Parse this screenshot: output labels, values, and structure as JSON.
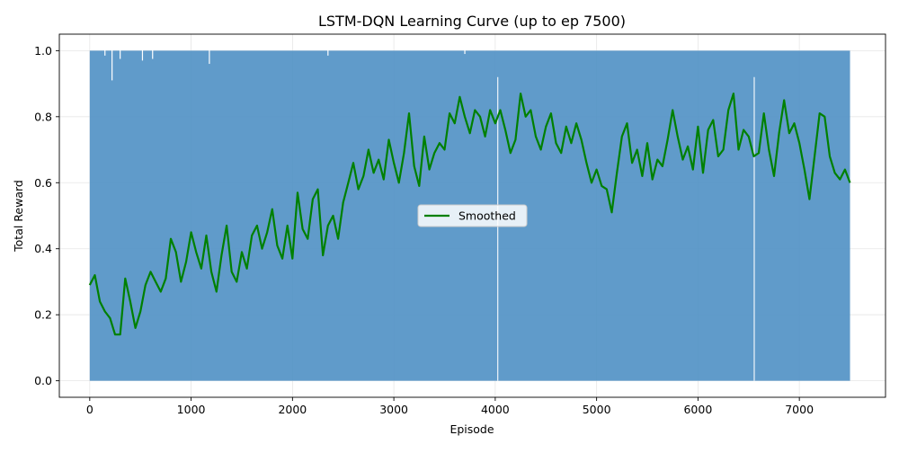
{
  "chart_data": {
    "type": "line",
    "title": "LSTM-DQN Learning Curve (up to ep 7500)",
    "xlabel": "Episode",
    "ylabel": "Total Reward",
    "xlim": [
      -300,
      7850
    ],
    "ylim": [
      -0.05,
      1.05
    ],
    "xticks": [
      0,
      1000,
      2000,
      3000,
      4000,
      5000,
      6000,
      7000
    ],
    "yticks": [
      0.0,
      0.2,
      0.4,
      0.6,
      0.8,
      1.0
    ],
    "xtick_labels": [
      "0",
      "1000",
      "2000",
      "3000",
      "4000",
      "5000",
      "6000",
      "7000"
    ],
    "ytick_labels": [
      "0.0",
      "0.2",
      "0.4",
      "0.6",
      "0.8",
      "1.0"
    ],
    "grid": true,
    "legend_position": "center",
    "series": [
      {
        "name": "",
        "kind": "raw",
        "color": "#4f90c4",
        "x_range": [
          0,
          7500
        ],
        "y_range": [
          0,
          1
        ],
        "description_values": [
          0,
          1
        ]
      },
      {
        "name": "Smoothed",
        "kind": "smoothed",
        "color": "#008000",
        "x": [
          0,
          50,
          100,
          150,
          200,
          250,
          300,
          350,
          400,
          450,
          500,
          550,
          600,
          650,
          700,
          750,
          800,
          850,
          900,
          950,
          1000,
          1050,
          1100,
          1150,
          1200,
          1250,
          1300,
          1350,
          1400,
          1450,
          1500,
          1550,
          1600,
          1650,
          1700,
          1750,
          1800,
          1850,
          1900,
          1950,
          2000,
          2050,
          2100,
          2150,
          2200,
          2250,
          2300,
          2350,
          2400,
          2450,
          2500,
          2550,
          2600,
          2650,
          2700,
          2750,
          2800,
          2850,
          2900,
          2950,
          3000,
          3050,
          3100,
          3150,
          3200,
          3250,
          3300,
          3350,
          3400,
          3450,
          3500,
          3550,
          3600,
          3650,
          3700,
          3750,
          3800,
          3850,
          3900,
          3950,
          4000,
          4050,
          4100,
          4150,
          4200,
          4250,
          4300,
          4350,
          4400,
          4450,
          4500,
          4550,
          4600,
          4650,
          4700,
          4750,
          4800,
          4850,
          4900,
          4950,
          5000,
          5050,
          5100,
          5150,
          5200,
          5250,
          5300,
          5350,
          5400,
          5450,
          5500,
          5550,
          5600,
          5650,
          5700,
          5750,
          5800,
          5850,
          5900,
          5950,
          6000,
          6050,
          6100,
          6150,
          6200,
          6250,
          6300,
          6350,
          6400,
          6450,
          6500,
          6550,
          6600,
          6650,
          6700,
          6750,
          6800,
          6850,
          6900,
          6950,
          7000,
          7050,
          7100,
          7150,
          7200,
          7250,
          7300,
          7350,
          7400,
          7450,
          7500
        ],
        "y": [
          0.29,
          0.32,
          0.24,
          0.21,
          0.19,
          0.14,
          0.14,
          0.31,
          0.24,
          0.16,
          0.21,
          0.29,
          0.33,
          0.3,
          0.27,
          0.31,
          0.43,
          0.39,
          0.3,
          0.36,
          0.45,
          0.39,
          0.34,
          0.44,
          0.33,
          0.27,
          0.38,
          0.47,
          0.33,
          0.3,
          0.39,
          0.34,
          0.44,
          0.47,
          0.4,
          0.45,
          0.52,
          0.41,
          0.37,
          0.47,
          0.37,
          0.57,
          0.46,
          0.43,
          0.55,
          0.58,
          0.38,
          0.47,
          0.5,
          0.43,
          0.54,
          0.6,
          0.66,
          0.58,
          0.62,
          0.7,
          0.63,
          0.67,
          0.61,
          0.73,
          0.66,
          0.6,
          0.69,
          0.81,
          0.65,
          0.59,
          0.74,
          0.64,
          0.69,
          0.72,
          0.7,
          0.81,
          0.78,
          0.86,
          0.8,
          0.75,
          0.82,
          0.8,
          0.74,
          0.82,
          0.78,
          0.82,
          0.76,
          0.69,
          0.73,
          0.87,
          0.8,
          0.82,
          0.74,
          0.7,
          0.77,
          0.81,
          0.72,
          0.69,
          0.77,
          0.72,
          0.78,
          0.73,
          0.66,
          0.6,
          0.64,
          0.59,
          0.58,
          0.51,
          0.63,
          0.74,
          0.78,
          0.66,
          0.7,
          0.62,
          0.72,
          0.61,
          0.67,
          0.65,
          0.73,
          0.82,
          0.74,
          0.67,
          0.71,
          0.64,
          0.77,
          0.63,
          0.76,
          0.79,
          0.68,
          0.7,
          0.82,
          0.87,
          0.7,
          0.76,
          0.74,
          0.68,
          0.69,
          0.81,
          0.7,
          0.62,
          0.75,
          0.85,
          0.75,
          0.78,
          0.72,
          0.64,
          0.55,
          0.68,
          0.81,
          0.8,
          0.68,
          0.63,
          0.61,
          0.64,
          0.6
        ]
      }
    ]
  }
}
